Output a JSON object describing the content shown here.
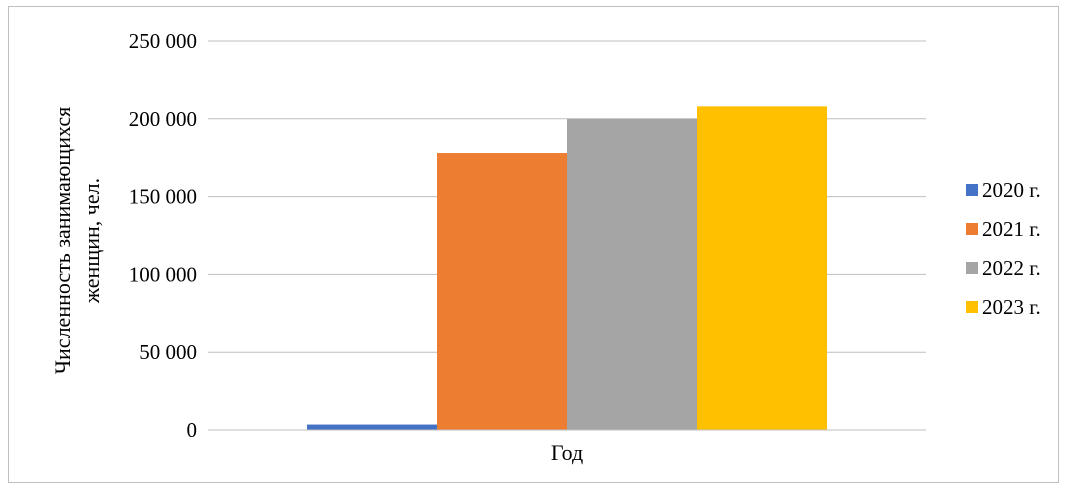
{
  "chart_data": {
    "type": "bar",
    "xlabel": "Год",
    "ylabel_lines": [
      "Численность занимающихся",
      "женщин, чел."
    ],
    "ylim": [
      0,
      250000
    ],
    "yticks": [
      0,
      50000,
      100000,
      150000,
      200000,
      250000
    ],
    "ytick_labels": [
      "0",
      "50 000",
      "100 000",
      "150 000",
      "200 000",
      "250 000"
    ],
    "grid": true,
    "legend_position": "right",
    "series": [
      {
        "name": "2020 г.",
        "color": "#4472C4",
        "values": [
          3500
        ]
      },
      {
        "name": "2021 г.",
        "color": "#ED7D31",
        "values": [
          178000
        ]
      },
      {
        "name": "2022 г.",
        "color": "#A5A5A5",
        "values": [
          200000
        ]
      },
      {
        "name": "2023 г.",
        "color": "#FFC000",
        "values": [
          208000
        ]
      }
    ]
  }
}
